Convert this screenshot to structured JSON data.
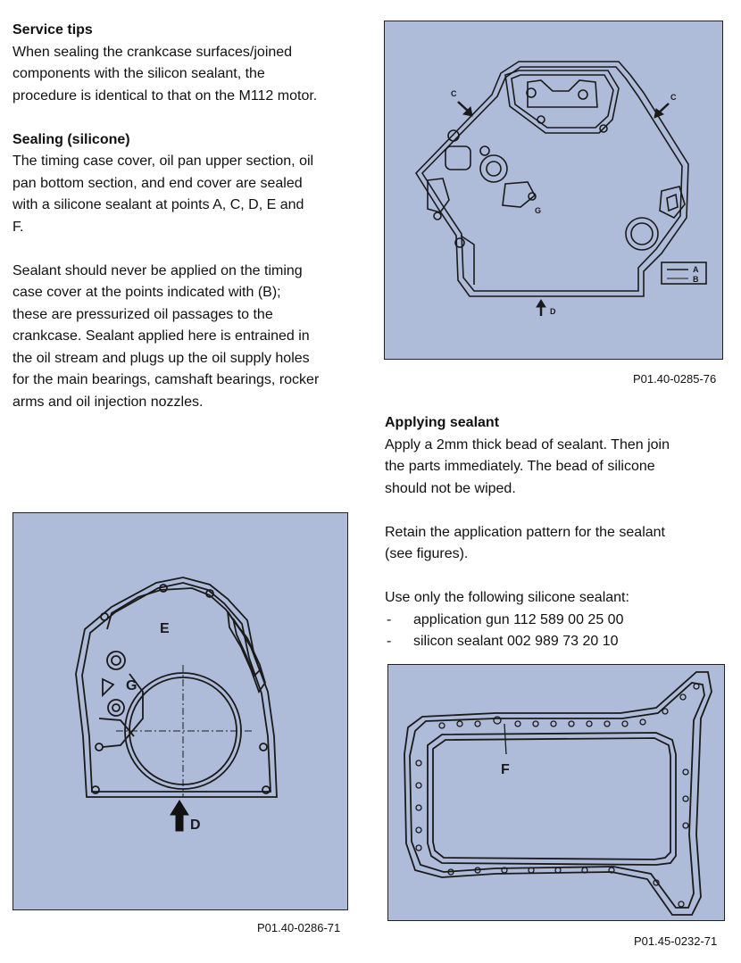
{
  "service_tips": {
    "heading": "Service tips",
    "lines": [
      "When sealing the crankcase surfaces/joined",
      "components with the silicon sealant, the",
      "procedure is identical to that on the M112 motor."
    ]
  },
  "sealing": {
    "heading": "Sealing (silicone)",
    "para1": [
      "The timing case cover, oil pan upper section, oil",
      "pan bottom section, and end cover are sealed",
      "with a silicone sealant at points A, C, D, E and",
      "F."
    ],
    "para2": [
      "Sealant should never be applied on the timing",
      "case cover at the points indicated with (B);",
      "these are pressurized oil passages to the",
      "crankcase.  Sealant applied here is entrained in",
      "the oil stream and plugs up the oil supply holes",
      "for the main bearings, camshaft bearings, rocker",
      "arms and oil injection nozzles."
    ]
  },
  "applying": {
    "heading": "Applying sealant",
    "para1": [
      "Apply a 2mm thick bead of sealant.  Then join",
      "the parts immediately.  The bead of silicone",
      "should not be wiped."
    ],
    "para2": [
      "Retain the application pattern for the sealant",
      "(see figures)."
    ],
    "para3": "Use only the following silicone sealant:",
    "items": [
      {
        "dash": "-",
        "text": "application gun 112 589 00 25 00"
      },
      {
        "dash": "-",
        "text": "silicon sealant 002 989 73 20 10"
      }
    ]
  },
  "figure1": {
    "caption": "P01.40-0285-76",
    "labels": {
      "c_left": "C",
      "c_right": "C",
      "g": "G",
      "d": "D",
      "legend_a": "A",
      "legend_b": "B"
    }
  },
  "figure2": {
    "caption": "P01.40-0286-71",
    "labels": {
      "e": "E",
      "g": "G",
      "d": "D"
    }
  },
  "figure3": {
    "caption": "P01.45-0232-71",
    "labels": {
      "f": "F"
    }
  },
  "colors": {
    "figure_bg": "#afbcd9",
    "line": "#1a1a1a"
  }
}
